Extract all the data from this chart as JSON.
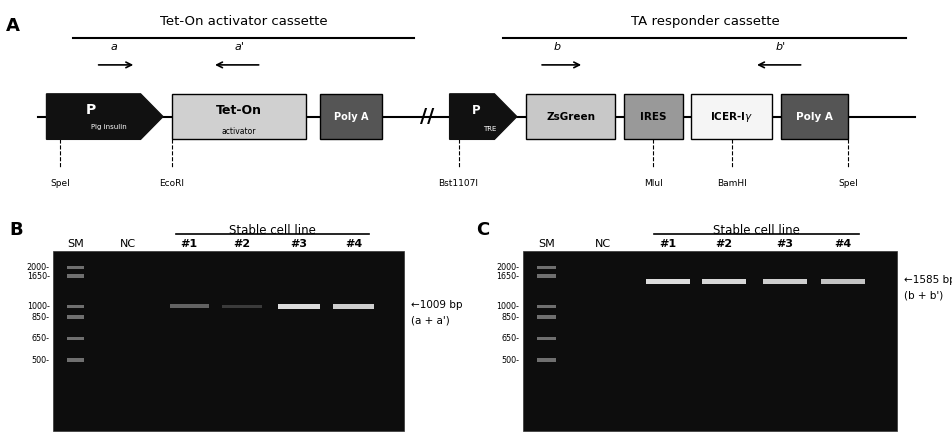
{
  "fig_width": 9.53,
  "fig_height": 4.4,
  "panel_A": {
    "label": "A",
    "cassette1_title": "Tet-On activator cassette",
    "cassette2_title": "TA responder cassette"
  },
  "panel_B": {
    "label": "B",
    "title": "Stable cell line",
    "lanes": [
      "SM",
      "NC",
      "#1",
      "#2",
      "#3",
      "#4"
    ],
    "band_annotation_line1": "←1009 bp",
    "band_annotation_line2": "(a + a')",
    "ladder_labels": [
      "2000-",
      "1650-",
      "1000-",
      "850-",
      "650-",
      "500-"
    ]
  },
  "panel_C": {
    "label": "C",
    "title": "Stable cell line",
    "lanes": [
      "SM",
      "NC",
      "#1",
      "#2",
      "#3",
      "#4"
    ],
    "band_annotation_line1": "←1585 bp",
    "band_annotation_line2": "(b + b')",
    "ladder_labels": [
      "2000-",
      "1650-",
      "1000-",
      "850-",
      "650-",
      "500-"
    ]
  }
}
